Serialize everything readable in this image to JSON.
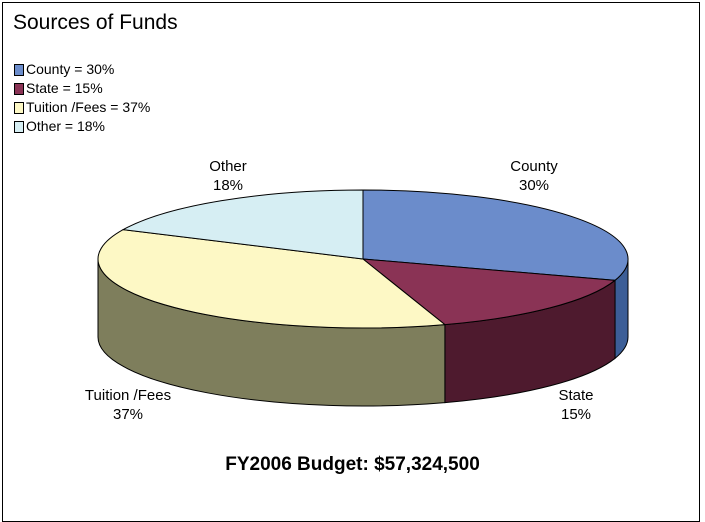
{
  "chart_data": {
    "type": "pie",
    "title": "Sources of Funds",
    "slices": [
      {
        "name": "County",
        "value": 30,
        "color": "#6B8CCB",
        "side_color": "#3C5E97",
        "legend_label": "County = 30%",
        "label_name": "County",
        "label_pct": "30%"
      },
      {
        "name": "State",
        "value": 15,
        "color": "#8A3355",
        "side_color": "#4E1A2E",
        "legend_label": "State = 15%",
        "label_name": "State",
        "label_pct": "15%"
      },
      {
        "name": "Tuition /Fees",
        "value": 37,
        "color": "#FDF8C5",
        "side_color": "#7E7E5C",
        "legend_label": "Tuition /Fees = 37%",
        "label_name": "Tuition /Fees",
        "label_pct": "37%"
      },
      {
        "name": "Other",
        "value": 18,
        "color": "#D6EEF3",
        "side_color": "#8FA7AD",
        "legend_label": "Other = 18%",
        "label_name": "Other",
        "label_pct": "18%"
      }
    ],
    "legend_position": "top-left",
    "style": "3d"
  },
  "footer": "FY2006 Budget:  $57,324,500"
}
